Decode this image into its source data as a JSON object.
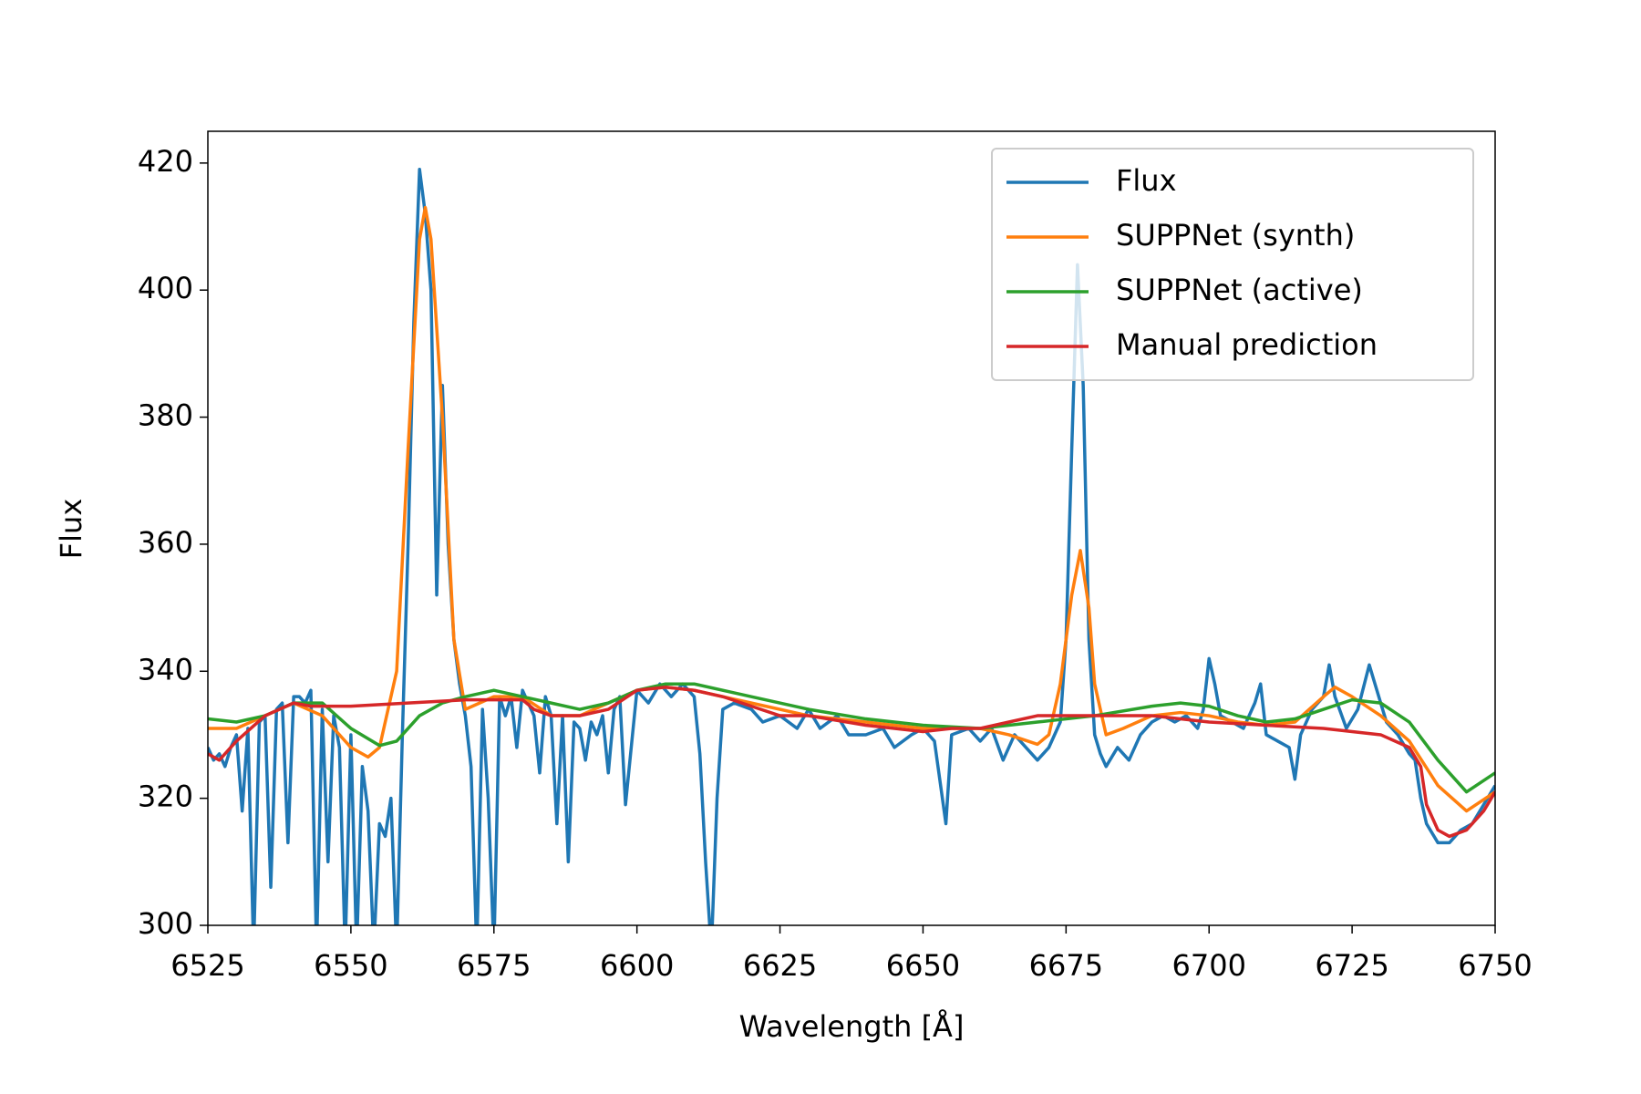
{
  "chart_data": {
    "type": "line",
    "xlabel": "Wavelength [Å]",
    "ylabel": "Flux",
    "xlim": [
      6525,
      6750
    ],
    "xticks": [
      6525,
      6550,
      6575,
      6600,
      6625,
      6650,
      6675,
      6700,
      6725,
      6750
    ],
    "ylim": [
      300,
      425
    ],
    "yticks": [
      300,
      320,
      340,
      360,
      380,
      400,
      420
    ],
    "grid": false,
    "legend": "upper right",
    "series": [
      {
        "name": "Flux",
        "color": "#1f77b4",
        "x": [
          6525,
          6526,
          6527,
          6528,
          6529,
          6530,
          6531,
          6532,
          6533,
          6534,
          6535,
          6536,
          6537,
          6538,
          6539,
          6540,
          6541,
          6542,
          6543,
          6544,
          6545,
          6546,
          6547,
          6548,
          6549,
          6550,
          6551,
          6552,
          6553,
          6554,
          6555,
          6556,
          6557,
          6558,
          6559,
          6560,
          6561,
          6562,
          6563,
          6564,
          6565,
          6566,
          6567,
          6568,
          6569,
          6570,
          6571,
          6572,
          6573,
          6574,
          6575,
          6576,
          6577,
          6578,
          6579,
          6580,
          6581,
          6582,
          6583,
          6584,
          6585,
          6586,
          6587,
          6588,
          6589,
          6590,
          6591,
          6592,
          6593,
          6594,
          6595,
          6596,
          6597,
          6598,
          6600,
          6602,
          6604,
          6606,
          6608,
          6610,
          6611,
          6612,
          6613,
          6614,
          6615,
          6617,
          6620,
          6622,
          6625,
          6628,
          6630,
          6632,
          6635,
          6637,
          6640,
          6643,
          6645,
          6648,
          6650,
          6652,
          6654,
          6655,
          6658,
          6660,
          6662,
          6664,
          6666,
          6668,
          6670,
          6672,
          6674,
          6675,
          6676,
          6677,
          6678,
          6679,
          6680,
          6681,
          6682,
          6684,
          6686,
          6688,
          6690,
          6692,
          6694,
          6696,
          6698,
          6699,
          6700,
          6701,
          6702,
          6704,
          6706,
          6708,
          6709,
          6710,
          6712,
          6714,
          6715,
          6716,
          6718,
          6720,
          6721,
          6722,
          6724,
          6726,
          6728,
          6729,
          6731,
          6733,
          6735,
          6736,
          6737,
          6738,
          6740,
          6742,
          6744,
          6746,
          6748,
          6750
        ],
        "values": [
          328,
          326,
          327,
          325,
          328,
          330,
          318,
          331,
          296,
          332,
          333,
          306,
          334,
          335,
          313,
          336,
          336,
          335,
          337,
          296,
          334,
          310,
          333,
          328,
          296,
          330,
          296,
          325,
          318,
          296,
          316,
          314,
          320,
          296,
          330,
          360,
          395,
          419,
          412,
          400,
          352,
          385,
          360,
          345,
          338,
          333,
          325,
          296,
          334,
          320,
          296,
          336,
          333,
          336,
          328,
          337,
          335,
          333,
          324,
          336,
          333,
          316,
          333,
          310,
          332,
          331,
          326,
          332,
          330,
          333,
          324,
          334,
          336,
          319,
          337,
          335,
          338,
          336,
          338,
          336,
          327,
          310,
          296,
          320,
          334,
          335,
          334,
          332,
          333,
          331,
          334,
          331,
          333,
          330,
          330,
          331,
          328,
          330,
          331,
          329,
          316,
          330,
          331,
          329,
          331,
          326,
          330,
          328,
          326,
          328,
          332,
          345,
          375,
          404,
          385,
          345,
          330,
          327,
          325,
          328,
          326,
          330,
          332,
          333,
          332,
          333,
          331,
          334,
          342,
          338,
          333,
          332,
          331,
          335,
          338,
          330,
          329,
          328,
          323,
          330,
          334,
          336,
          341,
          336,
          331,
          334,
          341,
          338,
          332,
          330,
          327,
          326,
          320,
          316,
          313,
          313,
          315,
          316,
          319,
          322
        ]
      },
      {
        "name": "SUPPNet (synth)",
        "color": "#ff7f0e",
        "x": [
          6525,
          6530,
          6535,
          6540,
          6545,
          6550,
          6553,
          6555,
          6558,
          6560,
          6562,
          6563,
          6564,
          6566,
          6568,
          6570,
          6575,
          6580,
          6585,
          6590,
          6595,
          6600,
          6605,
          6610,
          6620,
          6630,
          6640,
          6650,
          6660,
          6665,
          6670,
          6672,
          6674,
          6676,
          6677.5,
          6679,
          6680,
          6682,
          6685,
          6690,
          6695,
          6700,
          6705,
          6710,
          6715,
          6720,
          6722,
          6725,
          6730,
          6735,
          6740,
          6745,
          6750
        ],
        "values": [
          331,
          331,
          333,
          335,
          333,
          328,
          326.5,
          328,
          340,
          375,
          408,
          413,
          408,
          380,
          345,
          334,
          336,
          336,
          333,
          333,
          335,
          337,
          337.5,
          337,
          335,
          333,
          332,
          331,
          331,
          330,
          328.5,
          330,
          338,
          352,
          359,
          350,
          338,
          330,
          331,
          333,
          333.5,
          333,
          332,
          331.5,
          332,
          336,
          337.5,
          336,
          333,
          329,
          322,
          318,
          321
        ]
      },
      {
        "name": "SUPPNet (active)",
        "color": "#2ca02c",
        "x": [
          6525,
          6530,
          6535,
          6540,
          6545,
          6550,
          6555,
          6558,
          6562,
          6566,
          6570,
          6575,
          6580,
          6585,
          6590,
          6595,
          6600,
          6605,
          6610,
          6620,
          6630,
          6640,
          6650,
          6660,
          6670,
          6680,
          6690,
          6695,
          6700,
          6705,
          6710,
          6715,
          6720,
          6725,
          6730,
          6735,
          6740,
          6745,
          6750
        ],
        "values": [
          332.5,
          332,
          333,
          335,
          335,
          331,
          328.3,
          329,
          333,
          335,
          336,
          337,
          336,
          335,
          334,
          335,
          337,
          338,
          338,
          336,
          334,
          332.5,
          331.5,
          331,
          332,
          333,
          334.5,
          335,
          334.5,
          333,
          332,
          332.5,
          334,
          335.5,
          335,
          332,
          326,
          321,
          324
        ]
      },
      {
        "name": "Manual prediction",
        "color": "#d62728",
        "x": [
          6525,
          6527,
          6530,
          6535,
          6540,
          6543,
          6550,
          6560,
          6570,
          6575,
          6580,
          6582,
          6585,
          6590,
          6595,
          6600,
          6605,
          6610,
          6615,
          6620,
          6625,
          6630,
          6640,
          6645,
          6650,
          6655,
          6660,
          6665,
          6670,
          6680,
          6690,
          6700,
          6710,
          6720,
          6730,
          6735,
          6737,
          6738,
          6740,
          6742,
          6745,
          6748,
          6750
        ],
        "values": [
          327,
          326,
          329,
          333,
          335,
          334.5,
          334.5,
          335,
          335.5,
          335.5,
          335.5,
          334,
          333,
          333,
          334,
          337,
          337.5,
          337,
          336,
          334.5,
          333,
          333,
          331.5,
          331,
          330.5,
          331,
          331,
          332,
          333,
          333,
          333,
          332,
          331.5,
          331,
          330,
          328,
          325,
          319,
          315,
          314,
          315,
          318,
          321
        ]
      }
    ]
  }
}
